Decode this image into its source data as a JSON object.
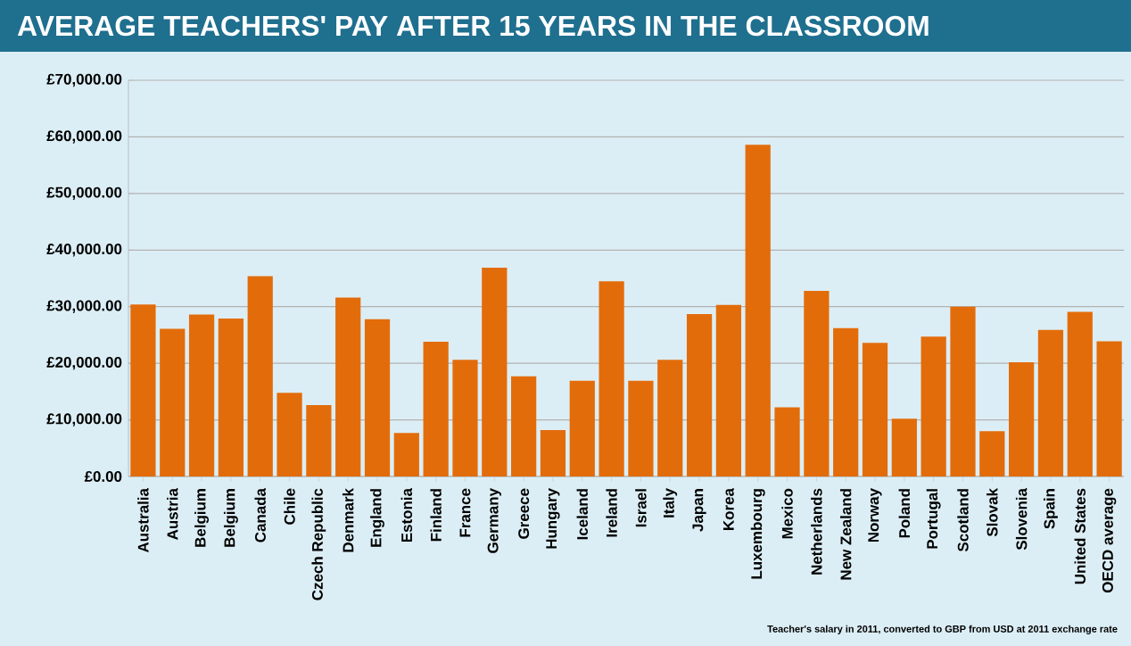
{
  "chart_data": {
    "type": "bar",
    "title": "AVERAGE TEACHERS' PAY AFTER 15 YEARS IN THE CLASSROOM",
    "categories": [
      "Australia",
      "Austria",
      "Belgium",
      "Belgium",
      "Canada",
      "Chile",
      "Czech Republic",
      "Denmark",
      "England",
      "Estonia",
      "Finland",
      "France",
      "Germany",
      "Greece",
      "Hungary",
      "Iceland",
      "Ireland",
      "Israel",
      "Italy",
      "Japan",
      "Korea",
      "Luxembourg",
      "Mexico",
      "Netherlands",
      "New Zealand",
      "Norway",
      "Poland",
      "Portugal",
      "Scotland",
      "Slovak",
      "Slovenia",
      "Spain",
      "United States",
      "OECD average"
    ],
    "values": [
      30400,
      26100,
      28600,
      27900,
      35400,
      14800,
      12600,
      31600,
      27800,
      7700,
      23800,
      20600,
      36900,
      17700,
      8200,
      16900,
      34500,
      16900,
      20600,
      28700,
      30300,
      58600,
      12200,
      32800,
      26200,
      23600,
      10200,
      24700,
      30000,
      8000,
      20200,
      25900,
      29100,
      23900
    ],
    "color": "#e36c0a",
    "ylim": [
      0,
      70000
    ],
    "yticks": [
      {
        "value": 0,
        "label": "£0.00"
      },
      {
        "value": 10000,
        "label": "£10,000.00"
      },
      {
        "value": 20000,
        "label": "£20,000.00"
      },
      {
        "value": 30000,
        "label": "£30,000.00"
      },
      {
        "value": 40000,
        "label": "£40,000.00"
      },
      {
        "value": 50000,
        "label": "£50,000.00"
      },
      {
        "value": 60000,
        "label": "£60,000.00"
      },
      {
        "value": 70000,
        "label": "£70,000.00"
      }
    ],
    "grid": "y",
    "annotations": [
      "Teacher's salary in 2011,  converted to GBP from USD at 2011  exchange rate"
    ]
  }
}
